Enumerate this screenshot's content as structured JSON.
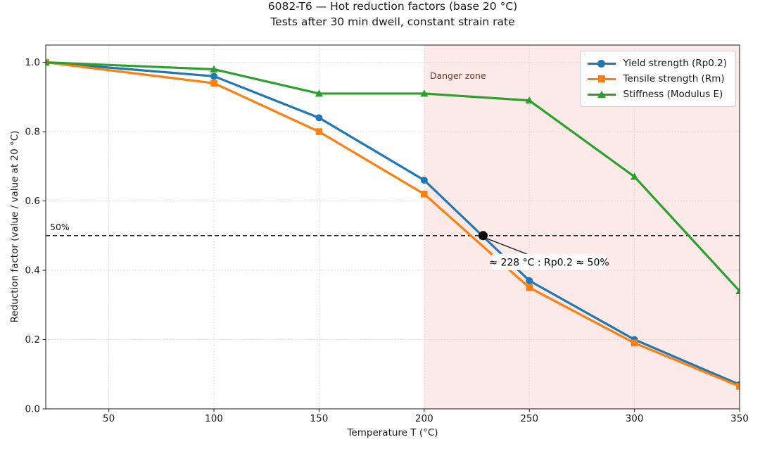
{
  "chart_data": {
    "type": "line",
    "title": "6082-T6 — Hot reduction factors (base 20 °C)",
    "subtitle": "Tests after 30 min dwell, constant strain rate",
    "xlabel": "Temperature T (°C)",
    "ylabel": "Reduction factor (value / value at 20 °C)",
    "xlim": [
      20,
      350
    ],
    "ylim": [
      0,
      1.05
    ],
    "x_ticks": [
      50,
      100,
      150,
      200,
      250,
      300,
      350
    ],
    "x_tick_labels": [
      "50",
      "100",
      "150",
      "200",
      "250",
      "300",
      "350"
    ],
    "y_ticks": [
      0.0,
      0.2,
      0.4,
      0.6,
      0.8,
      1.0
    ],
    "y_tick_labels": [
      "0.0",
      "0.2",
      "0.4",
      "0.6",
      "0.8",
      "1.0"
    ],
    "grid": true,
    "legend_position": "top-right",
    "x": [
      20,
      100,
      150,
      200,
      250,
      300,
      350
    ],
    "series": [
      {
        "name": "Yield strength (Rp0.2)",
        "marker": "circle",
        "color": "#1f77b4",
        "values": [
          1.0,
          0.96,
          0.84,
          0.66,
          0.37,
          0.2,
          0.07
        ]
      },
      {
        "name": "Tensile strength (Rm)",
        "marker": "square",
        "color": "#ff7f0e",
        "values": [
          1.0,
          0.94,
          0.8,
          0.62,
          0.35,
          0.19,
          0.065
        ]
      },
      {
        "name": "Stiffness (Modulus E)",
        "marker": "triangle",
        "color": "#2ca02c",
        "values": [
          1.0,
          0.98,
          0.91,
          0.91,
          0.89,
          0.67,
          0.34
        ]
      }
    ],
    "danger_zone": {
      "label": "Danger zone",
      "x_start": 200,
      "x_end": 350,
      "fill": "#fbeae8",
      "label_color": "#6f3430"
    },
    "reference_line": {
      "label": "50%",
      "y": 0.5,
      "style": "dashed",
      "color": "#000000"
    },
    "annotation": {
      "text": "≈ 228 °C : Rp0.2 ≈ 50%",
      "x": 228,
      "y": 0.5
    }
  }
}
